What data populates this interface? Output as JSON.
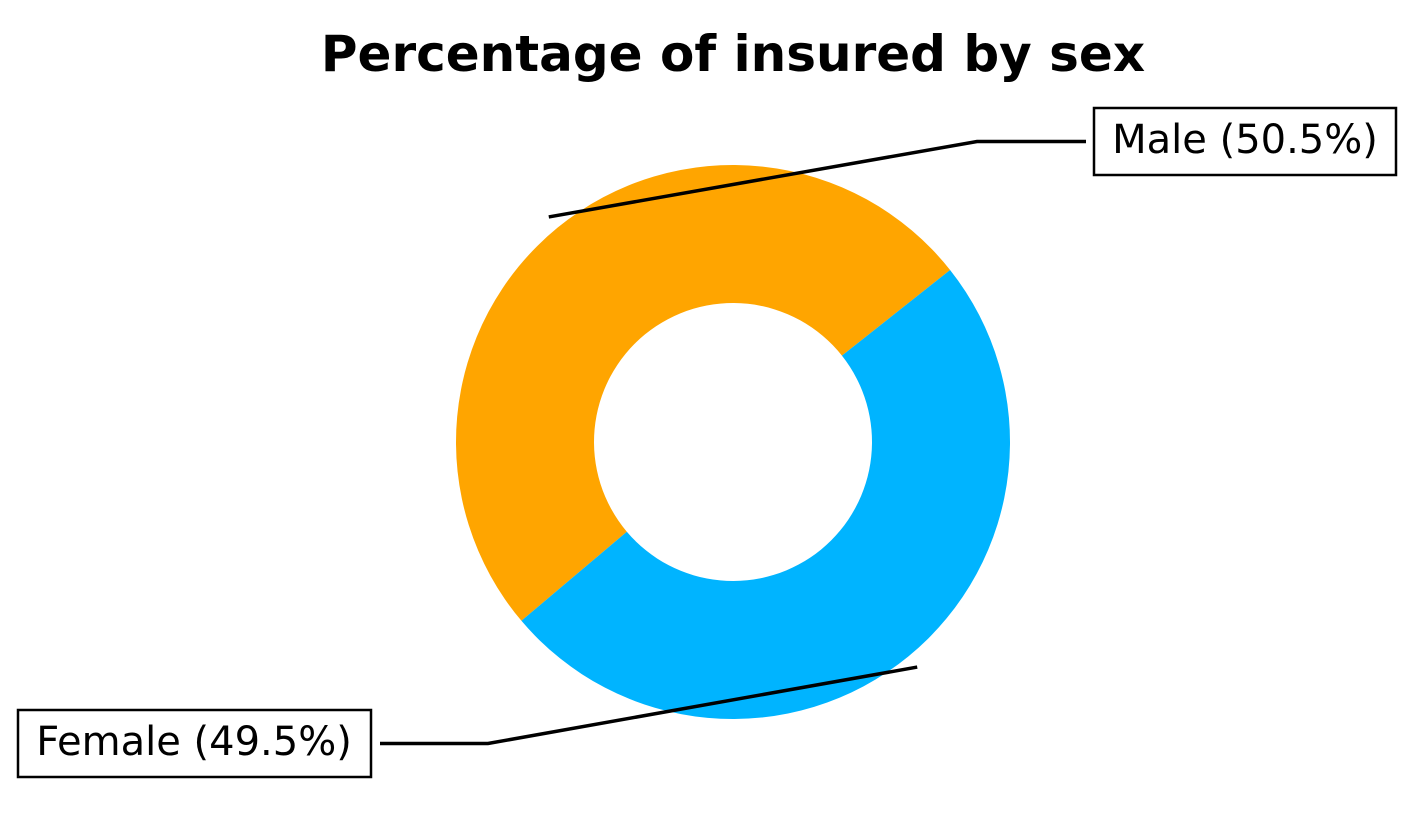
{
  "chart_data": {
    "type": "pie",
    "title": "Percentage of insured by sex",
    "donut": true,
    "slices": [
      {
        "label": "Male",
        "value": 50.5,
        "display": "Male (50.5%)",
        "color": "#FFA500"
      },
      {
        "label": "Female",
        "value": 49.5,
        "display": "Female (49.5%)",
        "color": "#00B4FF"
      }
    ],
    "legend": "none",
    "labels_style": "boxed-annotations-with-leader-lines"
  }
}
